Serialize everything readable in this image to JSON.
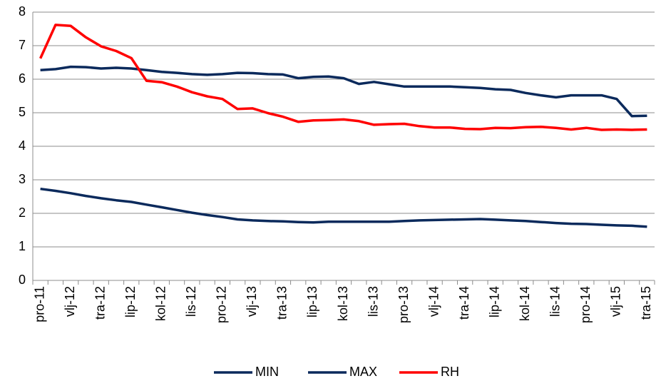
{
  "chart_data": {
    "type": "line",
    "categories": [
      "pro-11",
      null,
      "vlj-12",
      null,
      "tra-12",
      null,
      "lip-12",
      null,
      "kol-12",
      null,
      "lis-12",
      null,
      "pro-12",
      null,
      "vlj-13",
      null,
      "tra-13",
      null,
      "lip-13",
      null,
      "kol-13",
      null,
      "lis-13",
      null,
      "pro-13",
      null,
      "vlj-14",
      null,
      "tra-14",
      null,
      "lip-14",
      null,
      "kol-14",
      null,
      "lis-14",
      null,
      "pro-14",
      null,
      "vlj-15",
      null,
      "tra-15"
    ],
    "series": [
      {
        "name": "MIN",
        "color": "#0b2a5c",
        "values": [
          2.73,
          2.67,
          2.6,
          2.52,
          2.45,
          2.39,
          2.34,
          2.26,
          2.18,
          2.1,
          2.02,
          1.95,
          1.89,
          1.82,
          1.79,
          1.77,
          1.76,
          1.74,
          1.73,
          1.75,
          1.75,
          1.75,
          1.75,
          1.75,
          1.77,
          1.79,
          1.8,
          1.81,
          1.82,
          1.83,
          1.81,
          1.79,
          1.77,
          1.74,
          1.71,
          1.69,
          1.68,
          1.66,
          1.64,
          1.63,
          1.6
        ]
      },
      {
        "name": "MAX",
        "color": "#0b2a5c",
        "values": [
          6.27,
          6.3,
          6.37,
          6.36,
          6.32,
          6.34,
          6.32,
          6.27,
          6.22,
          6.19,
          6.15,
          6.13,
          6.15,
          6.19,
          6.18,
          6.15,
          6.14,
          6.03,
          6.07,
          6.08,
          6.03,
          5.86,
          5.92,
          5.85,
          5.78,
          5.78,
          5.78,
          5.78,
          5.76,
          5.74,
          5.7,
          5.68,
          5.59,
          5.52,
          5.46,
          5.52,
          5.52,
          5.52,
          5.41,
          4.9,
          4.91
        ]
      },
      {
        "name": "RH",
        "color": "#ff0000",
        "values": [
          6.62,
          7.62,
          7.59,
          7.25,
          6.98,
          6.84,
          6.63,
          5.95,
          5.91,
          5.78,
          5.61,
          5.49,
          5.41,
          5.11,
          5.13,
          4.99,
          4.88,
          4.73,
          4.77,
          4.78,
          4.8,
          4.75,
          4.64,
          4.66,
          4.67,
          4.6,
          4.56,
          4.56,
          4.52,
          4.51,
          4.55,
          4.54,
          4.57,
          4.58,
          4.55,
          4.5,
          4.55,
          4.49,
          4.5,
          4.49,
          4.5
        ]
      }
    ],
    "ylim": [
      0,
      8
    ],
    "yticks": [
      0,
      1,
      2,
      3,
      4,
      5,
      6,
      7,
      8
    ],
    "grid": true,
    "legend": "bottom"
  }
}
